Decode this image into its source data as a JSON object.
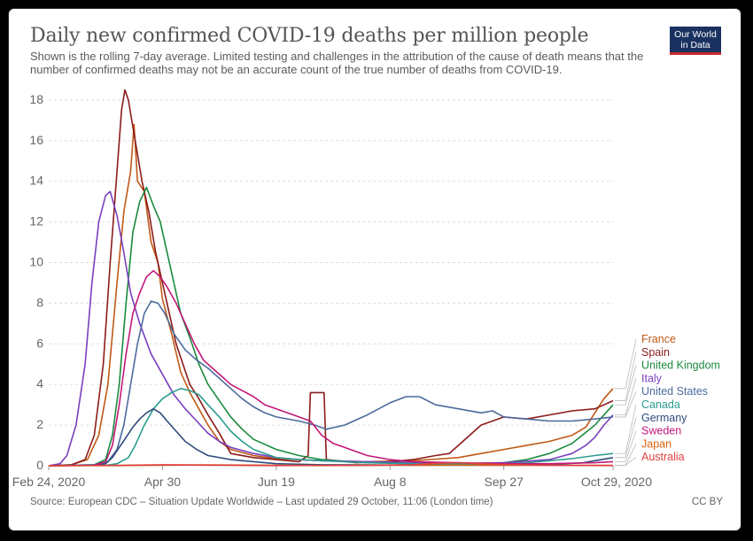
{
  "header": {
    "title": "Daily new confirmed COVID-19 deaths per million people",
    "subtitle": "Shown is the rolling 7-day average. Limited testing and challenges in the attribution of the cause of death means that the number of confirmed deaths may not be an accurate count of the true number of deaths from COVID-19.",
    "logo_line1": "Our World",
    "logo_line2": "in Data"
  },
  "footer": {
    "source": "Source: European CDC – Situation Update Worldwide – Last updated 29 October, 11:06 (London time)",
    "license": "CC BY"
  },
  "colors": {
    "grid": "#dddddd",
    "axis_text": "#666666",
    "logo_bg": "#1a3260",
    "logo_accent": "#c42b2b"
  },
  "chart_data": {
    "type": "line",
    "x_ticks": [
      "Feb 24, 2020",
      "Apr 30",
      "Jun 19",
      "Aug 8",
      "Sep 27",
      "Oct 29, 2020"
    ],
    "y_ticks": [
      0,
      2,
      4,
      6,
      8,
      10,
      12,
      14,
      16,
      18
    ],
    "ylim": [
      0,
      19
    ],
    "grid": "horizontal dashed",
    "legend_placement": "right, labels at line ends",
    "series": [
      {
        "name": "France",
        "color": "#c05917",
        "points": [
          [
            0,
            0
          ],
          [
            10,
            0.05
          ],
          [
            17,
            0.3
          ],
          [
            22,
            1.5
          ],
          [
            26,
            4
          ],
          [
            30,
            9
          ],
          [
            33,
            12.5
          ],
          [
            36,
            14.5
          ],
          [
            37.5,
            16.8
          ],
          [
            39,
            14
          ],
          [
            42,
            13.5
          ],
          [
            45,
            11
          ],
          [
            48,
            10
          ],
          [
            50,
            8.2
          ],
          [
            54,
            6.5
          ],
          [
            58,
            4.6
          ],
          [
            62,
            3.6
          ],
          [
            66,
            2.8
          ],
          [
            70,
            2
          ],
          [
            75,
            1.2
          ],
          [
            80,
            0.8
          ],
          [
            90,
            0.5
          ],
          [
            100,
            0.35
          ],
          [
            110,
            0.3
          ],
          [
            120,
            0.25
          ],
          [
            140,
            0.2
          ],
          [
            160,
            0.25
          ],
          [
            180,
            0.4
          ],
          [
            190,
            0.6
          ],
          [
            200,
            0.8
          ],
          [
            210,
            1
          ],
          [
            220,
            1.2
          ],
          [
            230,
            1.5
          ],
          [
            236,
            1.9
          ],
          [
            240,
            2.6
          ],
          [
            244,
            3.3
          ],
          [
            248,
            3.8
          ]
        ]
      },
      {
        "name": "Spain",
        "color": "#8c1b1b",
        "points": [
          [
            0,
            0
          ],
          [
            10,
            0.05
          ],
          [
            16,
            0.3
          ],
          [
            20,
            1.5
          ],
          [
            24,
            5
          ],
          [
            27,
            10
          ],
          [
            30,
            14.5
          ],
          [
            32,
            17.5
          ],
          [
            33.5,
            18.5
          ],
          [
            35,
            18
          ],
          [
            38,
            16
          ],
          [
            41,
            14
          ],
          [
            44,
            12.5
          ],
          [
            47,
            10.5
          ],
          [
            50,
            9
          ],
          [
            53,
            7.5
          ],
          [
            56,
            6
          ],
          [
            59,
            5
          ],
          [
            62,
            4
          ],
          [
            66,
            3.3
          ],
          [
            70,
            2.5
          ],
          [
            75,
            1.6
          ],
          [
            80,
            0.6
          ],
          [
            90,
            0.4
          ],
          [
            100,
            0.3
          ],
          [
            110,
            0.2
          ],
          [
            114,
            0.5
          ],
          [
            115,
            3.6
          ],
          [
            121,
            3.6
          ],
          [
            122,
            0.3
          ],
          [
            135,
            0.15
          ],
          [
            150,
            0.2
          ],
          [
            160,
            0.3
          ],
          [
            170,
            0.5
          ],
          [
            176,
            0.6
          ],
          [
            180,
            1
          ],
          [
            185,
            1.5
          ],
          [
            190,
            2
          ],
          [
            195,
            2.2
          ],
          [
            200,
            2.4
          ],
          [
            210,
            2.3
          ],
          [
            220,
            2.5
          ],
          [
            230,
            2.7
          ],
          [
            240,
            2.8
          ],
          [
            248,
            3.2
          ]
        ]
      },
      {
        "name": "United Kingdom",
        "color": "#1b8a3e",
        "points": [
          [
            0,
            0
          ],
          [
            20,
            0.05
          ],
          [
            25,
            0.3
          ],
          [
            28,
            1.5
          ],
          [
            31,
            4
          ],
          [
            34,
            8
          ],
          [
            37,
            11.5
          ],
          [
            40,
            13
          ],
          [
            43,
            13.7
          ],
          [
            46,
            12.8
          ],
          [
            49,
            12
          ],
          [
            52,
            10.5
          ],
          [
            55,
            9
          ],
          [
            58,
            7.5
          ],
          [
            62,
            6.3
          ],
          [
            66,
            5
          ],
          [
            70,
            4
          ],
          [
            75,
            3.2
          ],
          [
            80,
            2.4
          ],
          [
            85,
            1.8
          ],
          [
            90,
            1.3
          ],
          [
            100,
            0.8
          ],
          [
            110,
            0.5
          ],
          [
            120,
            0.3
          ],
          [
            140,
            0.15
          ],
          [
            160,
            0.1
          ],
          [
            180,
            0.1
          ],
          [
            200,
            0.15
          ],
          [
            210,
            0.3
          ],
          [
            220,
            0.6
          ],
          [
            230,
            1.1
          ],
          [
            240,
            2
          ],
          [
            248,
            3
          ]
        ]
      },
      {
        "name": "Italy",
        "color": "#7a3fbf",
        "points": [
          [
            0,
            0
          ],
          [
            5,
            0.1
          ],
          [
            8,
            0.5
          ],
          [
            12,
            2
          ],
          [
            16,
            5
          ],
          [
            19,
            9
          ],
          [
            22,
            12
          ],
          [
            25,
            13.3
          ],
          [
            27,
            13.5
          ],
          [
            30,
            12.3
          ],
          [
            33,
            10.5
          ],
          [
            36,
            8.5
          ],
          [
            40,
            7
          ],
          [
            45,
            5.5
          ],
          [
            50,
            4.5
          ],
          [
            55,
            3.5
          ],
          [
            60,
            2.8
          ],
          [
            65,
            2.2
          ],
          [
            70,
            1.6
          ],
          [
            75,
            1.2
          ],
          [
            80,
            0.9
          ],
          [
            90,
            0.6
          ],
          [
            100,
            0.4
          ],
          [
            110,
            0.3
          ],
          [
            120,
            0.25
          ],
          [
            140,
            0.2
          ],
          [
            160,
            0.15
          ],
          [
            180,
            0.1
          ],
          [
            200,
            0.15
          ],
          [
            220,
            0.3
          ],
          [
            230,
            0.6
          ],
          [
            236,
            1
          ],
          [
            240,
            1.4
          ],
          [
            244,
            2
          ],
          [
            248,
            2.5
          ]
        ]
      },
      {
        "name": "United States",
        "color": "#4c6a9c",
        "points": [
          [
            0,
            0
          ],
          [
            20,
            0.05
          ],
          [
            26,
            0.2
          ],
          [
            30,
            0.8
          ],
          [
            33,
            2
          ],
          [
            36,
            4
          ],
          [
            39,
            6
          ],
          [
            42,
            7.5
          ],
          [
            45,
            8.1
          ],
          [
            48,
            8
          ],
          [
            51,
            7.5
          ],
          [
            55,
            6.5
          ],
          [
            60,
            5.7
          ],
          [
            65,
            5.2
          ],
          [
            70,
            4.8
          ],
          [
            75,
            4.3
          ],
          [
            80,
            3.8
          ],
          [
            85,
            3.3
          ],
          [
            90,
            2.9
          ],
          [
            95,
            2.6
          ],
          [
            100,
            2.4
          ],
          [
            110,
            2.2
          ],
          [
            117,
            2
          ],
          [
            122,
            1.8
          ],
          [
            130,
            2
          ],
          [
            140,
            2.5
          ],
          [
            150,
            3.1
          ],
          [
            157,
            3.4
          ],
          [
            163,
            3.4
          ],
          [
            170,
            3
          ],
          [
            180,
            2.8
          ],
          [
            190,
            2.6
          ],
          [
            195,
            2.7
          ],
          [
            200,
            2.4
          ],
          [
            210,
            2.3
          ],
          [
            220,
            2.2
          ],
          [
            230,
            2.2
          ],
          [
            240,
            2.3
          ],
          [
            248,
            2.4
          ]
        ]
      },
      {
        "name": "Canada",
        "color": "#2b9d8f",
        "points": [
          [
            0,
            0
          ],
          [
            25,
            0.02
          ],
          [
            30,
            0.1
          ],
          [
            35,
            0.4
          ],
          [
            38,
            1
          ],
          [
            42,
            2
          ],
          [
            46,
            2.8
          ],
          [
            50,
            3.3
          ],
          [
            54,
            3.6
          ],
          [
            58,
            3.8
          ],
          [
            62,
            3.7
          ],
          [
            66,
            3.5
          ],
          [
            70,
            3
          ],
          [
            75,
            2.4
          ],
          [
            80,
            1.7
          ],
          [
            85,
            1.2
          ],
          [
            90,
            0.8
          ],
          [
            95,
            0.6
          ],
          [
            100,
            0.4
          ],
          [
            110,
            0.3
          ],
          [
            120,
            0.25
          ],
          [
            140,
            0.15
          ],
          [
            160,
            0.1
          ],
          [
            180,
            0.08
          ],
          [
            200,
            0.1
          ],
          [
            210,
            0.15
          ],
          [
            220,
            0.25
          ],
          [
            230,
            0.35
          ],
          [
            240,
            0.5
          ],
          [
            248,
            0.6
          ]
        ]
      },
      {
        "name": "Germany",
        "color": "#2f4b7c",
        "points": [
          [
            0,
            0
          ],
          [
            20,
            0.02
          ],
          [
            25,
            0.1
          ],
          [
            28,
            0.4
          ],
          [
            31,
            0.9
          ],
          [
            34,
            1.4
          ],
          [
            37,
            1.9
          ],
          [
            40,
            2.3
          ],
          [
            43,
            2.6
          ],
          [
            46,
            2.8
          ],
          [
            49,
            2.6
          ],
          [
            52,
            2.2
          ],
          [
            56,
            1.7
          ],
          [
            60,
            1.2
          ],
          [
            65,
            0.8
          ],
          [
            70,
            0.5
          ],
          [
            80,
            0.3
          ],
          [
            90,
            0.2
          ],
          [
            100,
            0.1
          ],
          [
            120,
            0.05
          ],
          [
            160,
            0.03
          ],
          [
            200,
            0.03
          ],
          [
            220,
            0.05
          ],
          [
            235,
            0.15
          ],
          [
            248,
            0.4
          ]
        ]
      },
      {
        "name": "Sweden",
        "color": "#c2187a",
        "points": [
          [
            0,
            0
          ],
          [
            20,
            0.02
          ],
          [
            25,
            0.2
          ],
          [
            28,
            1
          ],
          [
            31,
            3
          ],
          [
            34,
            5.5
          ],
          [
            37,
            7.5
          ],
          [
            40,
            8.5
          ],
          [
            43,
            9.3
          ],
          [
            46,
            9.6
          ],
          [
            49,
            9.3
          ],
          [
            52,
            8.8
          ],
          [
            56,
            8
          ],
          [
            60,
            7
          ],
          [
            64,
            6
          ],
          [
            68,
            5.2
          ],
          [
            72,
            4.8
          ],
          [
            76,
            4.4
          ],
          [
            80,
            4
          ],
          [
            85,
            3.7
          ],
          [
            90,
            3.4
          ],
          [
            95,
            3
          ],
          [
            100,
            2.8
          ],
          [
            110,
            2.4
          ],
          [
            115,
            2.2
          ],
          [
            120,
            1.5
          ],
          [
            125,
            1.1
          ],
          [
            130,
            0.9
          ],
          [
            140,
            0.5
          ],
          [
            150,
            0.3
          ],
          [
            160,
            0.2
          ],
          [
            180,
            0.15
          ],
          [
            200,
            0.1
          ],
          [
            220,
            0.1
          ],
          [
            240,
            0.15
          ],
          [
            248,
            0.2
          ]
        ]
      },
      {
        "name": "Japan",
        "color": "#d9620f",
        "points": [
          [
            0,
            0
          ],
          [
            30,
            0.01
          ],
          [
            50,
            0.03
          ],
          [
            70,
            0.04
          ],
          [
            90,
            0.03
          ],
          [
            120,
            0.01
          ],
          [
            150,
            0.02
          ],
          [
            180,
            0.03
          ],
          [
            210,
            0.02
          ],
          [
            248,
            0.02
          ]
        ]
      },
      {
        "name": "Australia",
        "color": "#e04040",
        "points": [
          [
            0,
            0
          ],
          [
            30,
            0.02
          ],
          [
            50,
            0.05
          ],
          [
            70,
            0.03
          ],
          [
            100,
            0.01
          ],
          [
            140,
            0.02
          ],
          [
            160,
            0.05
          ],
          [
            170,
            0.12
          ],
          [
            180,
            0.15
          ],
          [
            190,
            0.1
          ],
          [
            200,
            0.06
          ],
          [
            220,
            0.02
          ],
          [
            248,
            0.01
          ]
        ]
      }
    ]
  }
}
